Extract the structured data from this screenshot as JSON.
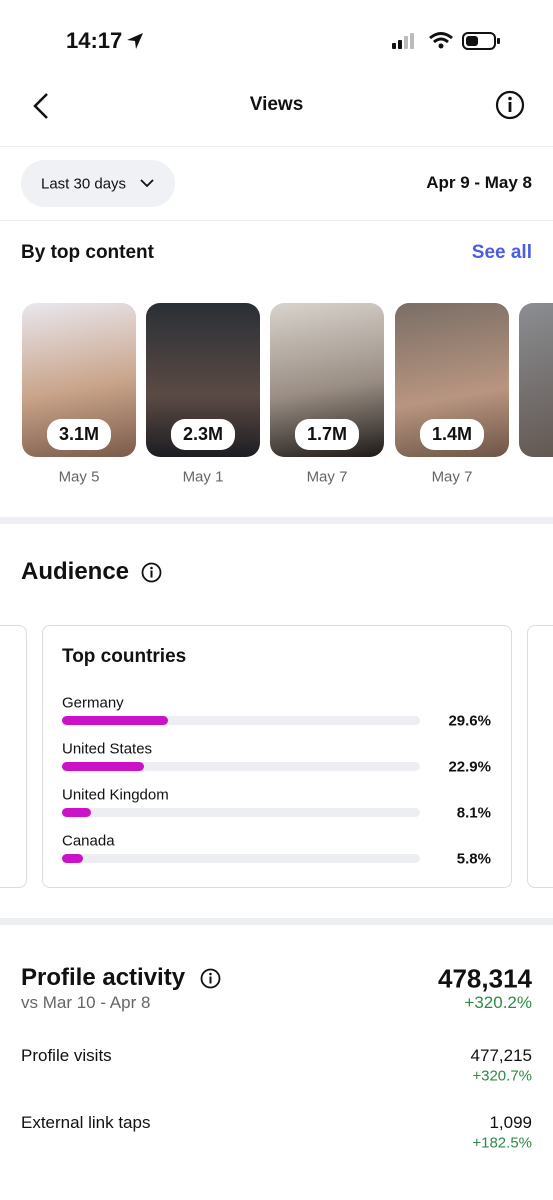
{
  "status_bar": {
    "time": "14:17"
  },
  "header": {
    "title": "Views"
  },
  "filter": {
    "range": "Last 30 days",
    "dates": "Apr 9 - May 8"
  },
  "top_content": {
    "title": "By top content",
    "link": "See all",
    "items": [
      {
        "views": "3.1M",
        "date": "May 5"
      },
      {
        "views": "2.3M",
        "date": "May 1"
      },
      {
        "views": "1.7M",
        "date": "May 7"
      },
      {
        "views": "1.4M",
        "date": "May 7"
      }
    ]
  },
  "audience": {
    "title": "Audience",
    "top_countries": {
      "title": "Top countries",
      "rows": [
        {
          "name": "Germany",
          "value": 29.6,
          "label": "29.6%"
        },
        {
          "name": "United States",
          "value": 22.9,
          "label": "22.9%"
        },
        {
          "name": "United Kingdom",
          "value": 8.1,
          "label": "8.1%"
        },
        {
          "name": "Canada",
          "value": 5.8,
          "label": "5.8%"
        }
      ]
    }
  },
  "profile_activity": {
    "title": "Profile activity",
    "total": "478,314",
    "change": "+320.2%",
    "comparison": "vs Mar 10 - Apr 8",
    "rows": [
      {
        "label": "Profile visits",
        "value": "477,215",
        "change": "+320.7%"
      },
      {
        "label": "External link taps",
        "value": "1,099",
        "change": "+182.5%"
      }
    ]
  }
}
